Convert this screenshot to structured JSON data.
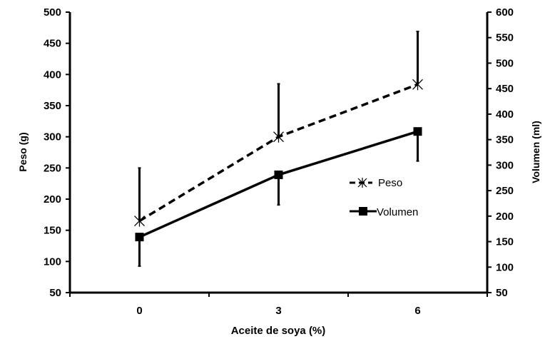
{
  "chart_data": {
    "type": "line",
    "xlabel": "Aceite de soya (%)",
    "ylabel": "Peso (g)",
    "y2label": "Volumen (ml)",
    "categories": [
      "0",
      "3",
      "6"
    ],
    "ylim": [
      50,
      500
    ],
    "yticks": [
      50,
      100,
      150,
      200,
      250,
      300,
      350,
      400,
      450,
      500
    ],
    "y2lim": [
      50,
      600
    ],
    "y2ticks": [
      50,
      100,
      150,
      200,
      250,
      300,
      350,
      400,
      450,
      500,
      550,
      600
    ],
    "grid": false,
    "legend_position": "right",
    "series": [
      {
        "name": "Peso",
        "axis": "left",
        "values": [
          165,
          300,
          384
        ],
        "error_plus": [
          85,
          85,
          85
        ],
        "line_style": "dashed",
        "marker": "asterisk",
        "color": "#000000"
      },
      {
        "name": "Volumen",
        "axis": "right",
        "values": [
          159,
          281,
          366
        ],
        "error_minus": [
          57,
          59,
          58
        ],
        "line_style": "solid",
        "marker": "square",
        "color": "#000000"
      }
    ]
  }
}
